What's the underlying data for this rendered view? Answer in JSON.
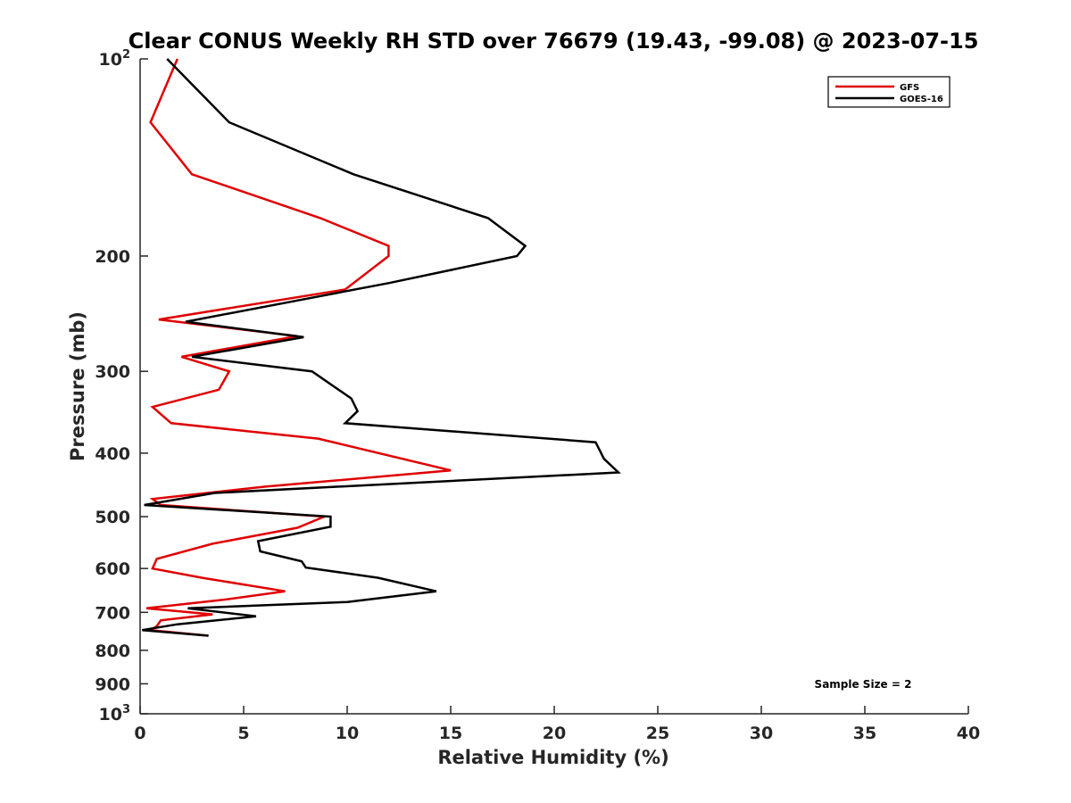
{
  "chart_data": {
    "type": "line",
    "title": "Clear CONUS Weekly RH STD over 76679 (19.43, -99.08) @ 2023-07-15",
    "xlabel": "Relative Humidity (%)",
    "ylabel": "Pressure (mb)",
    "xlim": [
      0,
      40
    ],
    "ylim": [
      100,
      1000
    ],
    "y_scale": "log",
    "y_reversed": true,
    "x_ticks": [
      0,
      5,
      10,
      15,
      20,
      25,
      30,
      35,
      40
    ],
    "y_ticks": [
      {
        "value": 100,
        "label": "10",
        "sup": "2"
      },
      {
        "value": 200,
        "label": "200",
        "sup": ""
      },
      {
        "value": 300,
        "label": "300",
        "sup": ""
      },
      {
        "value": 400,
        "label": "400",
        "sup": ""
      },
      {
        "value": 500,
        "label": "500",
        "sup": ""
      },
      {
        "value": 600,
        "label": "600",
        "sup": ""
      },
      {
        "value": 700,
        "label": "700",
        "sup": ""
      },
      {
        "value": 800,
        "label": "800",
        "sup": ""
      },
      {
        "value": 900,
        "label": "900",
        "sup": ""
      },
      {
        "value": 1000,
        "label": "10",
        "sup": "3"
      }
    ],
    "grid": false,
    "legend_position": "top-right",
    "annotation": "Sample Size = 2",
    "series": [
      {
        "name": "GFS",
        "color": "#e00000",
        "points": [
          {
            "x": 1.8,
            "y": 100
          },
          {
            "x": 0.5,
            "y": 125
          },
          {
            "x": 2.5,
            "y": 150
          },
          {
            "x": 8.7,
            "y": 175
          },
          {
            "x": 12.0,
            "y": 193
          },
          {
            "x": 12.0,
            "y": 200
          },
          {
            "x": 9.9,
            "y": 225
          },
          {
            "x": 0.9,
            "y": 250
          },
          {
            "x": 7.6,
            "y": 265
          },
          {
            "x": 2.0,
            "y": 285
          },
          {
            "x": 4.3,
            "y": 300
          },
          {
            "x": 3.8,
            "y": 320
          },
          {
            "x": 0.6,
            "y": 340
          },
          {
            "x": 1.5,
            "y": 360
          },
          {
            "x": 8.6,
            "y": 380
          },
          {
            "x": 15.0,
            "y": 425
          },
          {
            "x": 6.0,
            "y": 450
          },
          {
            "x": 0.6,
            "y": 470
          },
          {
            "x": 1.0,
            "y": 480
          },
          {
            "x": 8.9,
            "y": 500
          },
          {
            "x": 7.6,
            "y": 520
          },
          {
            "x": 3.5,
            "y": 550
          },
          {
            "x": 0.8,
            "y": 580
          },
          {
            "x": 0.6,
            "y": 600
          },
          {
            "x": 3.0,
            "y": 620
          },
          {
            "x": 7.0,
            "y": 650
          },
          {
            "x": 4.0,
            "y": 670
          },
          {
            "x": 0.3,
            "y": 690
          },
          {
            "x": 3.5,
            "y": 705
          },
          {
            "x": 1.0,
            "y": 720
          },
          {
            "x": 0.8,
            "y": 735
          },
          {
            "x": 0.5,
            "y": 745
          },
          {
            "x": 3.3,
            "y": 760
          }
        ]
      },
      {
        "name": "GOES-16",
        "color": "#000000",
        "points": [
          {
            "x": 1.3,
            "y": 100
          },
          {
            "x": 4.3,
            "y": 125
          },
          {
            "x": 10.3,
            "y": 150
          },
          {
            "x": 16.8,
            "y": 175
          },
          {
            "x": 18.6,
            "y": 193
          },
          {
            "x": 18.2,
            "y": 200
          },
          {
            "x": 12.0,
            "y": 220
          },
          {
            "x": 2.2,
            "y": 252
          },
          {
            "x": 7.9,
            "y": 266
          },
          {
            "x": 2.5,
            "y": 285
          },
          {
            "x": 8.3,
            "y": 300
          },
          {
            "x": 10.2,
            "y": 330
          },
          {
            "x": 10.5,
            "y": 345
          },
          {
            "x": 9.9,
            "y": 360
          },
          {
            "x": 22.0,
            "y": 385
          },
          {
            "x": 22.4,
            "y": 408
          },
          {
            "x": 23.1,
            "y": 428
          },
          {
            "x": 3.6,
            "y": 460
          },
          {
            "x": 0.2,
            "y": 480
          },
          {
            "x": 9.2,
            "y": 500
          },
          {
            "x": 9.2,
            "y": 518
          },
          {
            "x": 5.7,
            "y": 545
          },
          {
            "x": 5.8,
            "y": 565
          },
          {
            "x": 7.8,
            "y": 585
          },
          {
            "x": 8.0,
            "y": 598
          },
          {
            "x": 11.5,
            "y": 620
          },
          {
            "x": 14.3,
            "y": 650
          },
          {
            "x": 10.0,
            "y": 675
          },
          {
            "x": 2.3,
            "y": 690
          },
          {
            "x": 5.6,
            "y": 710
          },
          {
            "x": 1.8,
            "y": 730
          },
          {
            "x": 0.1,
            "y": 745
          },
          {
            "x": 3.3,
            "y": 760
          }
        ]
      }
    ]
  }
}
